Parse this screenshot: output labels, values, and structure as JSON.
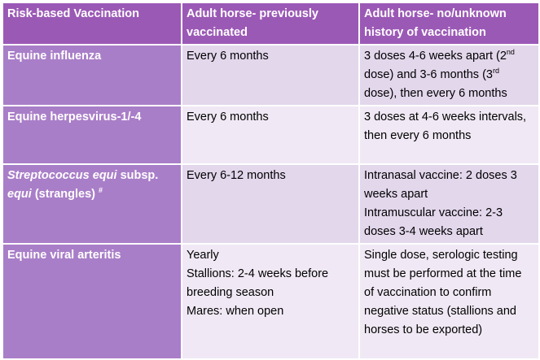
{
  "table": {
    "headers": [
      "Risk-based Vaccination",
      "Adult horse- previously vaccinated",
      "Adult horse- no/unknown history of vaccination"
    ],
    "rows": [
      {
        "disease": "Equine influenza",
        "previously": [
          "Every 6 months"
        ],
        "unknown": {
          "a": "3 doses 4-6 weeks apart (2",
          "sup1": "nd",
          "b": " dose) and 3-6 months (3",
          "sup2": "rd",
          "c": " dose), then every 6 months"
        }
      },
      {
        "disease": "Equine herpesvirus-1/-4",
        "previously": [
          "Every 6 months"
        ],
        "unknown_text": "3 doses at 4-6 weeks intervals, then every 6 months"
      },
      {
        "disease_italic_1": "Streptococcus equi",
        "disease_normal": " subsp. ",
        "disease_italic_2": "equi",
        "disease_rest": " (strangles) ",
        "disease_mark": "#",
        "previously": [
          "Every 6-12 months"
        ],
        "unknown_lines": [
          "Intranasal vaccine: 2 doses 3 weeks apart",
          "Intramuscular vaccine: 2-3 doses 3-4 weeks apart"
        ]
      },
      {
        "disease": "Equine viral arteritis",
        "previously": [
          "Yearly",
          "Stallions: 2-4 weeks before breeding season",
          "Mares: when open"
        ],
        "unknown_text": "Single dose, serologic testing must be performed at the time of vaccination to confirm negative status (stallions and horses to be exported)"
      }
    ]
  }
}
